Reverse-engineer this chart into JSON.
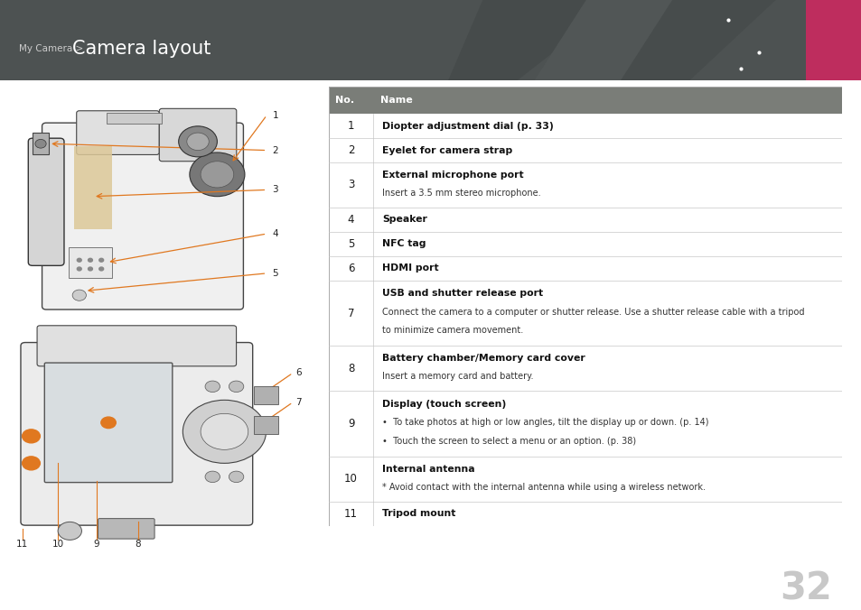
{
  "title_small": "My Camera > ",
  "title_large": "Camera layout",
  "header_bg": "#4d5252",
  "page_bg": "#ffffff",
  "accent_color": "#be2d5e",
  "table_header_bg": "#7a7d78",
  "rows": [
    {
      "no": "1",
      "bold": "Diopter adjustment dial (p. 33)",
      "detail": ""
    },
    {
      "no": "2",
      "bold": "Eyelet for camera strap",
      "detail": ""
    },
    {
      "no": "3",
      "bold": "External microphone port",
      "detail": "Insert a 3.5 mm stereo microphone."
    },
    {
      "no": "4",
      "bold": "Speaker",
      "detail": ""
    },
    {
      "no": "5",
      "bold": "NFC tag",
      "detail": ""
    },
    {
      "no": "6",
      "bold": "HDMI port",
      "detail": ""
    },
    {
      "no": "7",
      "bold": "USB and shutter release port",
      "detail": "Connect the camera to a computer or shutter release. Use a shutter release cable with a tripod\nto minimize camera movement."
    },
    {
      "no": "8",
      "bold": "Battery chamber/Memory card cover",
      "detail": "Insert a memory card and battery."
    },
    {
      "no": "9",
      "bold": "Display (touch screen)",
      "detail": "•  To take photos at high or low angles, tilt the display up or down. (p. 14)\n•  Touch the screen to select a menu or an option. (p. 38)"
    },
    {
      "no": "10",
      "bold": "Internal antenna",
      "detail": "* Avoid contact with the internal antenna while using a wireless network."
    },
    {
      "no": "11",
      "bold": "Tripod mount",
      "detail": ""
    }
  ],
  "page_number": "32",
  "line_color": "#c8c8c8",
  "orange": "#e07820"
}
